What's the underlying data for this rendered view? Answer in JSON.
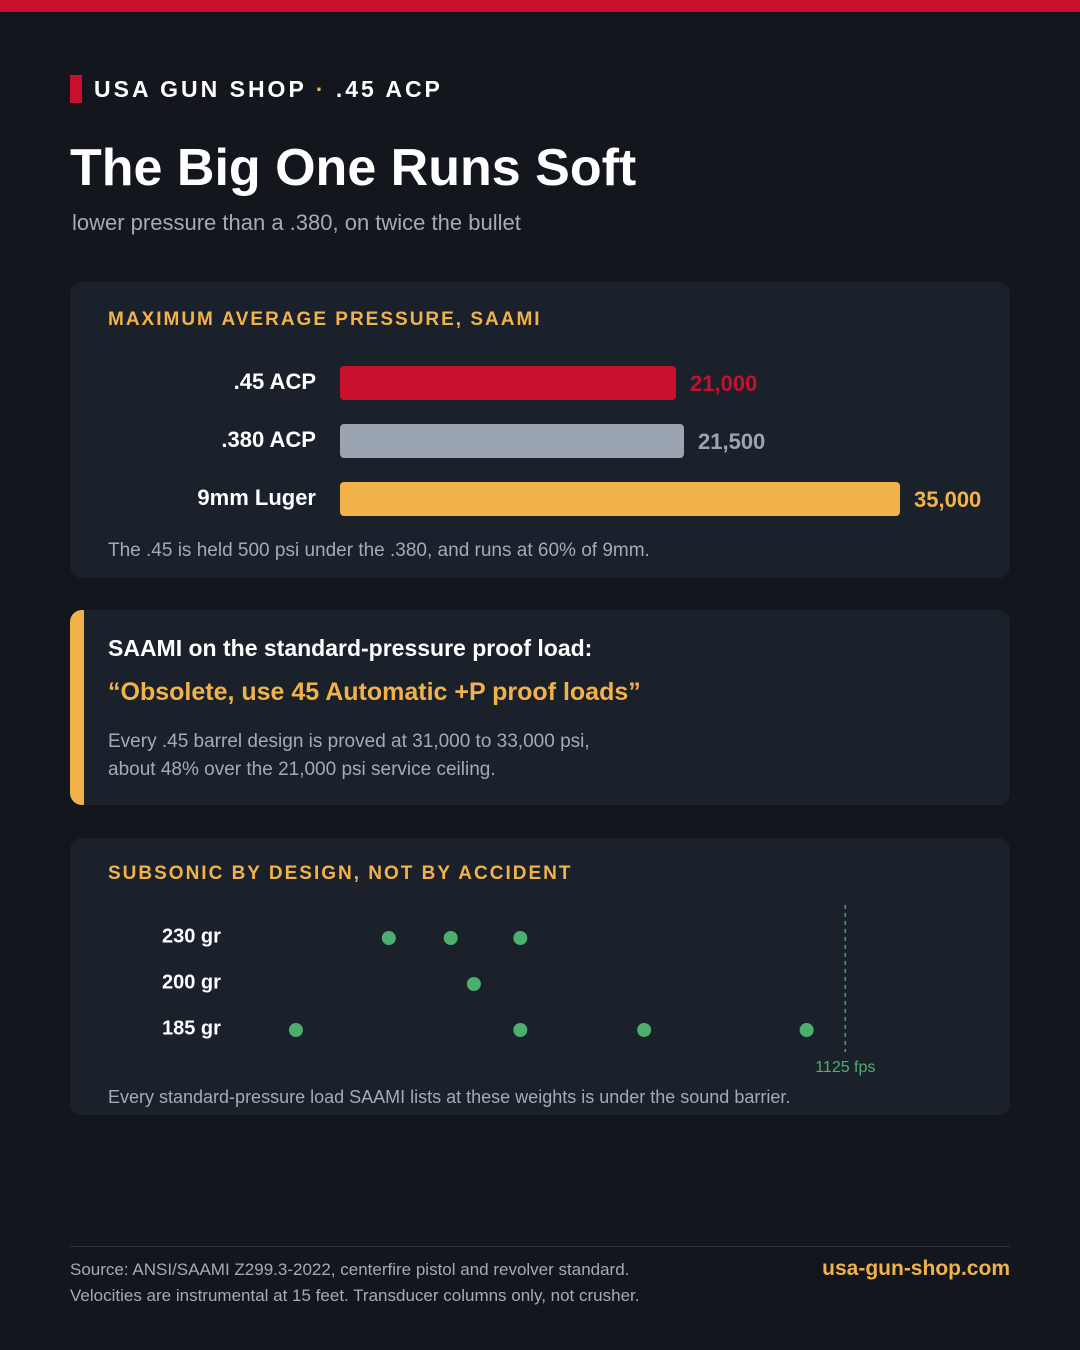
{
  "header": {
    "brand": "USA GUN SHOP",
    "separator": "·",
    "caliber": ".45 ACP"
  },
  "title": "The Big One Runs Soft",
  "subtitle": "lower pressure than a .380, on twice the bullet",
  "chart_data": [
    {
      "type": "bar",
      "orientation": "horizontal",
      "title": "MAXIMUM AVERAGE PRESSURE, SAAMI",
      "categories": [
        ".45 ACP",
        ".380 ACP",
        "9mm Luger"
      ],
      "values": [
        21000,
        21500,
        35000
      ],
      "value_labels": [
        "21,000",
        "21,500",
        "35,000"
      ],
      "colors": [
        "#c8102e",
        "#9aa5b1",
        "#f2b24a"
      ],
      "note": "The .45 is held 500 psi under the .380, and runs at 60% of 9mm."
    },
    {
      "type": "strip",
      "title": "SUBSONIC BY DESIGN, NOT BY ACCIDENT",
      "rows": [
        {
          "label": "230 gr",
          "x": [
            830,
            870,
            915
          ]
        },
        {
          "label": "200 gr",
          "x": [
            885
          ]
        },
        {
          "label": "185 gr",
          "x": [
            770,
            915,
            995,
            1100
          ]
        }
      ],
      "color": "#4caf6e",
      "xlim": [
        750,
        1150
      ],
      "reference": {
        "value": 1125,
        "label": "1125 fps"
      },
      "note": "Every standard-pressure load SAAMI lists at these weights is under the sound barrier."
    }
  ],
  "callout": {
    "heading": "SAAMI on the standard-pressure proof load:",
    "quote": "“Obsolete, use 45 Automatic +P proof loads”",
    "body": [
      "Every .45 barrel design is proved at 31,000 to 33,000 psi,",
      "about 48% over the 21,000 psi service ceiling."
    ]
  },
  "footer": {
    "source": [
      "Source: ANSI/SAAMI Z299.3-2022, centerfire pistol and revolver standard.",
      "Velocities are instrumental at 15 feet. Transducer columns only, not crusher."
    ],
    "url": "usa-gun-shop.com"
  }
}
